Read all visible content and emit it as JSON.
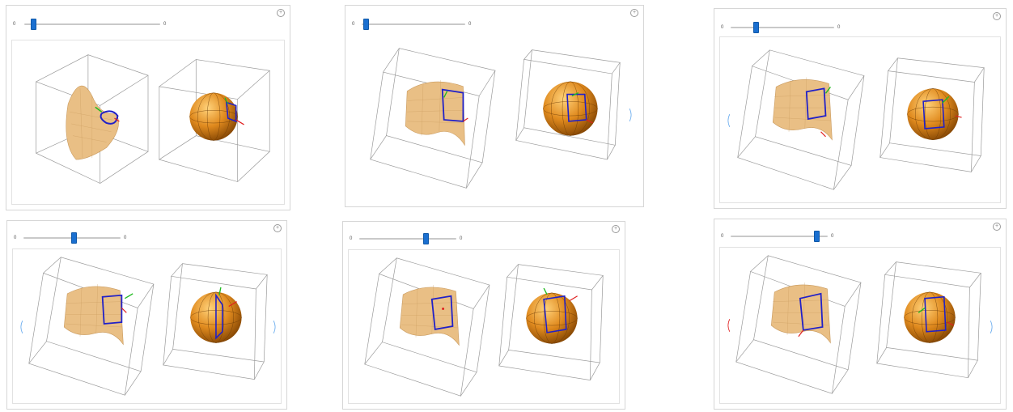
{
  "colors": {
    "slider_thumb": "#1a6fd0",
    "surface": "#e9bf85",
    "sphere": "#e08a1e",
    "path": "#2020c8",
    "arrow_green": "#22bb22",
    "arrow_red": "#e02020"
  },
  "icons": [
    "plus-icon",
    "sphere-surface-plot",
    "saddle-surface-plot"
  ],
  "panels": [
    {
      "slider": {
        "min_label": "0",
        "max_label": "0",
        "value": 0.05
      }
    },
    {
      "slider": {
        "min_label": "0",
        "max_label": "0",
        "value": 0.02
      }
    },
    {
      "slider": {
        "min_label": "0",
        "max_label": "0",
        "value": 0.23
      }
    },
    {
      "slider": {
        "min_label": "0",
        "max_label": "0",
        "value": 0.52
      }
    },
    {
      "slider": {
        "min_label": "0",
        "max_label": "0",
        "value": 0.7
      }
    },
    {
      "slider": {
        "min_label": "0",
        "max_label": "0",
        "value": 0.91
      }
    }
  ]
}
